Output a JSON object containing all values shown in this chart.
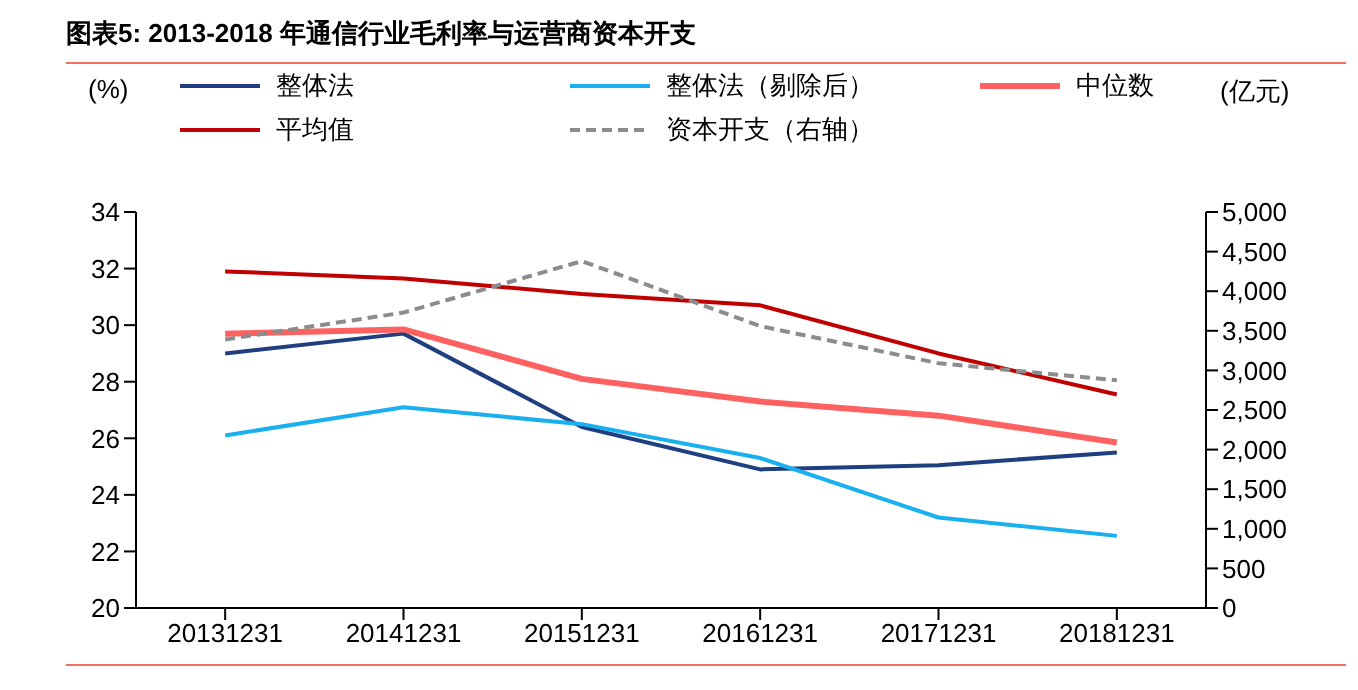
{
  "chart_data": {
    "type": "line",
    "title": "图表5:   2013-2018 年通信行业毛利率与运营商资本开支",
    "ylabel": "(%)",
    "y2label": "(亿元)",
    "categories": [
      "20131231",
      "20141231",
      "20151231",
      "20161231",
      "20171231",
      "20181231"
    ],
    "series": [
      {
        "name": "整体法",
        "color": "#1f3f80",
        "values": [
          29.0,
          29.7,
          26.4,
          24.9,
          25.05,
          25.5
        ]
      },
      {
        "name": "整体法（剔除后）",
        "color": "#1ab0ef",
        "values": [
          26.1,
          27.1,
          26.5,
          25.3,
          23.2,
          22.55
        ]
      },
      {
        "name": "中位数",
        "color": "#ff6060",
        "values": [
          29.7,
          29.85,
          28.1,
          27.3,
          26.8,
          25.85
        ]
      },
      {
        "name": "平均值",
        "color": "#c00000",
        "values": [
          31.9,
          31.65,
          31.1,
          30.7,
          29.0,
          27.55
        ]
      },
      {
        "name": "资本开支（右轴）",
        "color": "#8c8c8c",
        "values": [
          3390,
          3730,
          4380,
          3560,
          3090,
          2875
        ],
        "axis": "y2",
        "line_style": "dashed"
      }
    ],
    "ylim": [
      20,
      34
    ],
    "yticks": [
      20,
      22,
      24,
      26,
      28,
      30,
      32,
      34
    ],
    "y2lim": [
      0,
      5000
    ],
    "y2ticks": [
      {
        "value": 0,
        "label": "0"
      },
      {
        "value": 500,
        "label": "500"
      },
      {
        "value": 1000,
        "label": "1,000"
      },
      {
        "value": 1500,
        "label": "1,500"
      },
      {
        "value": 2000,
        "label": "2,000"
      },
      {
        "value": 2500,
        "label": "2,500"
      },
      {
        "value": 3000,
        "label": "3,000"
      },
      {
        "value": 3500,
        "label": "3,500"
      },
      {
        "value": 4000,
        "label": "4,000"
      },
      {
        "value": 4500,
        "label": "4,500"
      },
      {
        "value": 5000,
        "label": "5,000"
      }
    ],
    "grid": false,
    "legend": "top",
    "marker": "none",
    "line_style": "solid"
  }
}
